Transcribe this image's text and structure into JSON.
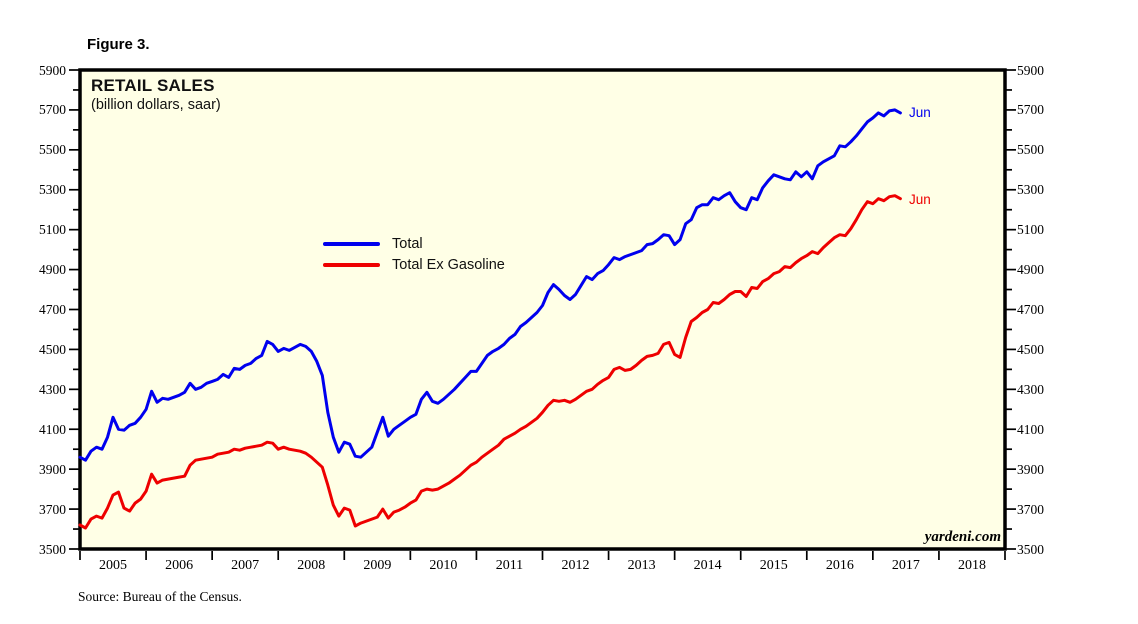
{
  "figure_label": "Figure 3.",
  "chart": {
    "title": "RETAIL SALES",
    "subtitle": "(billion dollars, saar)",
    "watermark": "yardeni.com",
    "source": "Source: Bureau of the Census.",
    "colors": {
      "total_line": "#0000EE",
      "ex_gasoline_line": "#EE0000",
      "plot_background": "#FFFFE6",
      "frame": "#000000"
    }
  },
  "chart_data": {
    "type": "line",
    "title": "RETAIL SALES",
    "subtitle": "(billion dollars, saar)",
    "xlabel": "",
    "ylabel": "billion dollars, saar",
    "frequency": "monthly",
    "x_start": {
      "year": 2005,
      "month": 1
    },
    "x_end": {
      "year": 2017,
      "month": 6
    },
    "x_axis_years": [
      2005,
      2006,
      2007,
      2008,
      2009,
      2010,
      2011,
      2012,
      2013,
      2014,
      2015,
      2016,
      2017,
      2018
    ],
    "x_domain": [
      2005,
      2019
    ],
    "ylim": [
      3500,
      5900
    ],
    "y_minor_tick": 100,
    "y_label_interval": 200,
    "grid": false,
    "legend_position": "inside-center-left",
    "series": [
      {
        "name": "Total",
        "color": "#0000EE",
        "end_label": "Jun",
        "values": [
          3960,
          3945,
          3990,
          4010,
          4000,
          4060,
          4160,
          4100,
          4095,
          4120,
          4130,
          4160,
          4200,
          4290,
          4235,
          4255,
          4250,
          4260,
          4270,
          4285,
          4330,
          4300,
          4310,
          4330,
          4340,
          4350,
          4375,
          4360,
          4405,
          4400,
          4420,
          4430,
          4455,
          4470,
          4540,
          4525,
          4490,
          4505,
          4495,
          4510,
          4525,
          4515,
          4490,
          4440,
          4370,
          4185,
          4060,
          3985,
          4035,
          4025,
          3965,
          3960,
          3985,
          4010,
          4085,
          4160,
          4065,
          4100,
          4120,
          4140,
          4160,
          4175,
          4250,
          4285,
          4240,
          4230,
          4250,
          4275,
          4300,
          4330,
          4360,
          4390,
          4390,
          4430,
          4470,
          4490,
          4505,
          4525,
          4555,
          4575,
          4615,
          4635,
          4660,
          4685,
          4720,
          4785,
          4825,
          4800,
          4770,
          4750,
          4775,
          4820,
          4865,
          4850,
          4880,
          4895,
          4925,
          4960,
          4950,
          4965,
          4975,
          4985,
          4995,
          5025,
          5030,
          5050,
          5075,
          5070,
          5025,
          5050,
          5130,
          5150,
          5210,
          5225,
          5225,
          5260,
          5250,
          5270,
          5285,
          5240,
          5210,
          5200,
          5260,
          5250,
          5310,
          5345,
          5375,
          5365,
          5355,
          5350,
          5390,
          5365,
          5390,
          5355,
          5420,
          5440,
          5455,
          5470,
          5520,
          5515,
          5540,
          5570,
          5605,
          5640,
          5660,
          5685,
          5670,
          5695,
          5700,
          5685
        ]
      },
      {
        "name": "Total Ex Gasoline",
        "color": "#EE0000",
        "end_label": "Jun",
        "values": [
          3620,
          3605,
          3650,
          3665,
          3655,
          3705,
          3770,
          3785,
          3705,
          3690,
          3730,
          3750,
          3790,
          3875,
          3830,
          3845,
          3850,
          3855,
          3860,
          3865,
          3920,
          3945,
          3950,
          3955,
          3960,
          3975,
          3980,
          3985,
          4000,
          3995,
          4005,
          4010,
          4015,
          4020,
          4035,
          4030,
          4000,
          4010,
          4000,
          3995,
          3990,
          3980,
          3960,
          3935,
          3910,
          3820,
          3720,
          3665,
          3705,
          3695,
          3615,
          3630,
          3640,
          3650,
          3660,
          3700,
          3655,
          3685,
          3695,
          3710,
          3730,
          3745,
          3790,
          3800,
          3795,
          3800,
          3815,
          3830,
          3850,
          3870,
          3895,
          3920,
          3935,
          3960,
          3980,
          4000,
          4020,
          4050,
          4065,
          4080,
          4100,
          4115,
          4135,
          4155,
          4185,
          4220,
          4245,
          4240,
          4245,
          4235,
          4250,
          4270,
          4290,
          4300,
          4325,
          4345,
          4360,
          4400,
          4410,
          4395,
          4400,
          4420,
          4445,
          4465,
          4470,
          4480,
          4525,
          4535,
          4475,
          4460,
          4560,
          4640,
          4660,
          4685,
          4700,
          4735,
          4730,
          4750,
          4775,
          4790,
          4790,
          4765,
          4810,
          4805,
          4840,
          4855,
          4880,
          4890,
          4915,
          4910,
          4935,
          4955,
          4970,
          4990,
          4980,
          5010,
          5035,
          5060,
          5075,
          5070,
          5105,
          5150,
          5200,
          5240,
          5230,
          5255,
          5245,
          5265,
          5270,
          5255
        ]
      }
    ]
  }
}
